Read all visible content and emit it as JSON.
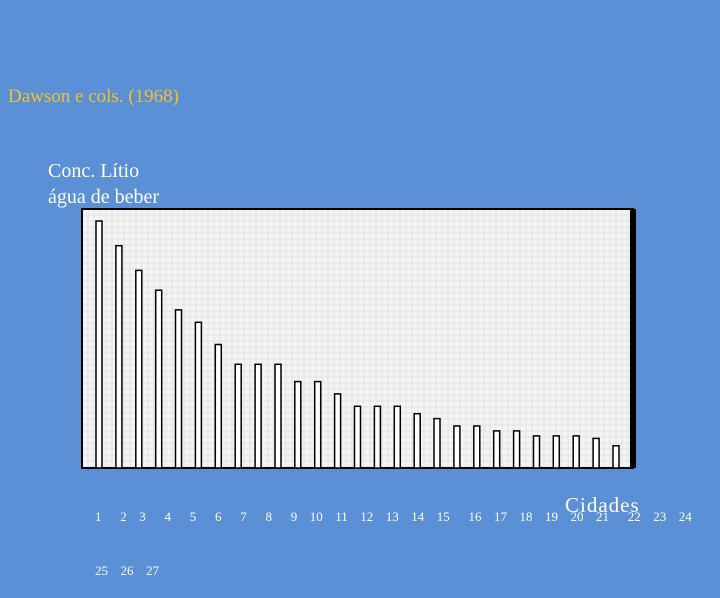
{
  "chart_data": {
    "type": "bar",
    "title": "Dawson e cols. (1968)",
    "ylabel_lines": [
      "Conc. Lítio",
      "água de beber"
    ],
    "xlabel": "Cidades",
    "tick_label_lines": [
      "1   2  3   4   5   6   7   8   9  10  11  12  13  14  15   16  17  18  19  20  21   22  23  24",
      "25  26  27"
    ],
    "grid": true,
    "ylim": [
      0,
      100
    ],
    "values": [
      100,
      90,
      80,
      72,
      64,
      59,
      50,
      42,
      42,
      42,
      35,
      35,
      30,
      25,
      25,
      25,
      22,
      20,
      17,
      17,
      15,
      15,
      13,
      13,
      13,
      12,
      9
    ],
    "colors": {
      "background": "#5b8fd6",
      "plot": "#f4f4f4",
      "frame": "#000000",
      "bar_fill": "#ffffff",
      "title": "#f2c12e",
      "text": "#ffffff"
    }
  }
}
